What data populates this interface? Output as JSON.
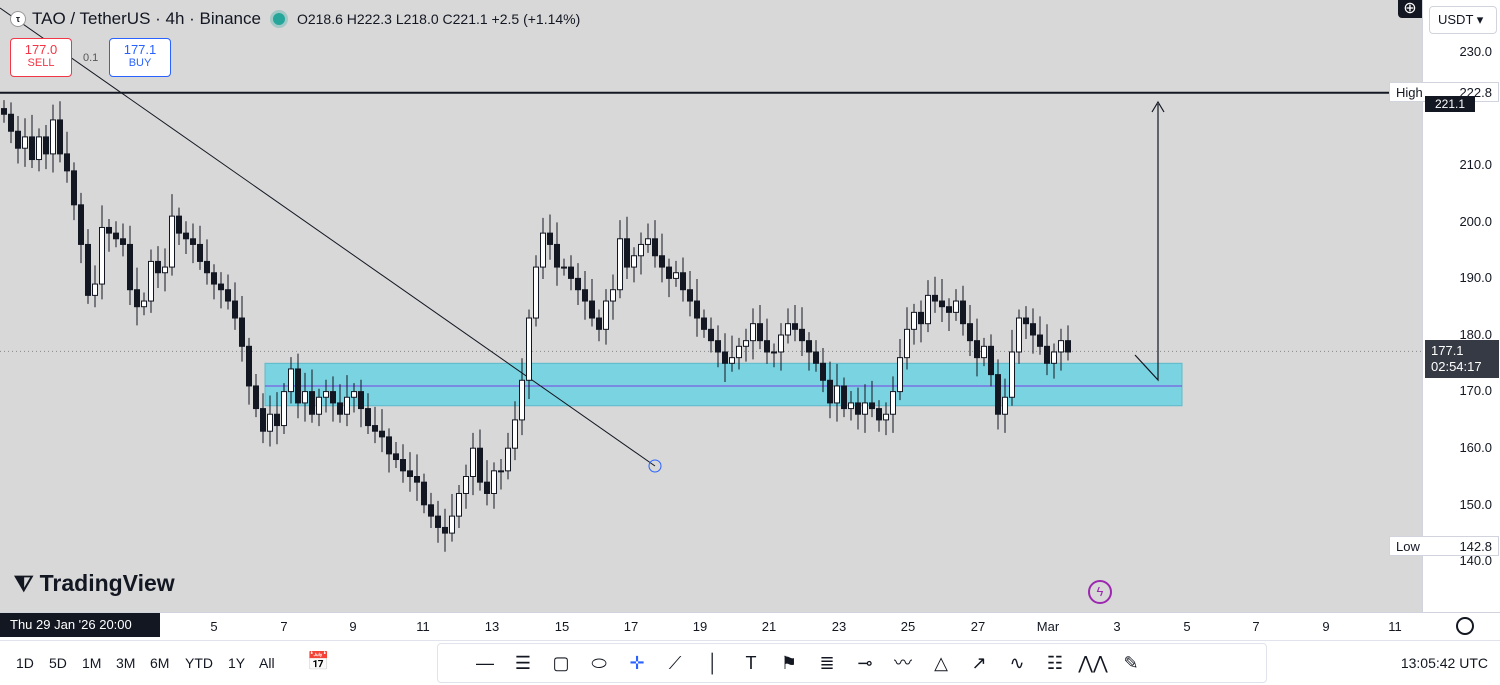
{
  "header": {
    "logo": "τ",
    "symbol": "TAO / TetherUS · 4h · Binance",
    "ohlc": "O218.6  H222.3  L218.0  C221.1  +2.5 (+1.14%)"
  },
  "trade": {
    "sell_price": "177.0",
    "sell_label": "SELL",
    "spread": "0.1",
    "buy_price": "177.1",
    "buy_label": "BUY"
  },
  "watermark": "TradingView",
  "price_axis": {
    "currency": "USDT",
    "ticks": [
      "230.0",
      "210.0",
      "200.0",
      "190.0",
      "180.0",
      "170.0",
      "160.0",
      "150.0",
      "140.0"
    ],
    "high_label": "High",
    "high_value": "222.8",
    "low_label": "Low",
    "low_value": "142.8",
    "line_tag": "221.1",
    "current_price": "177.1",
    "countdown": "02:54:17"
  },
  "time_axis": {
    "cursor_date": "Thu 29 Jan '26   20:00",
    "ticks": [
      "5",
      "7",
      "9",
      "11",
      "13",
      "15",
      "17",
      "19",
      "21",
      "23",
      "25",
      "27",
      "Mar",
      "3",
      "5",
      "7",
      "9",
      "11"
    ]
  },
  "ranges": [
    "1D",
    "5D",
    "1M",
    "3M",
    "6M",
    "YTD",
    "1Y",
    "All"
  ],
  "clock": "13:05:42 UTC",
  "colors": {
    "zone": "#7ad3e0",
    "up": "#ffffff",
    "down": "#131722",
    "mid_line": "#7b3fe4"
  },
  "chart_data": {
    "type": "candlestick",
    "symbol": "TAO / TetherUS",
    "interval": "4h",
    "y_range": [
      138,
      232
    ],
    "resistance": 222.8,
    "zone": {
      "low": 167.5,
      "high": 175,
      "mid": 171
    },
    "closes": [
      219,
      216,
      213,
      215,
      211,
      215,
      212,
      218,
      212,
      209,
      203,
      196,
      187,
      189,
      199,
      198,
      197,
      196,
      188,
      185,
      186,
      193,
      191,
      192,
      201,
      198,
      197,
      196,
      193,
      191,
      189,
      188,
      186,
      183,
      178,
      171,
      167,
      163,
      166,
      164,
      170,
      174,
      168,
      170,
      166,
      169,
      170,
      168,
      166,
      169,
      170,
      167,
      164,
      163,
      162,
      159,
      158,
      156,
      155,
      154,
      150,
      148,
      146,
      145,
      148,
      152,
      155,
      160,
      154,
      152,
      156,
      156,
      160,
      165,
      172,
      183,
      192,
      198,
      196,
      192,
      192,
      190,
      188,
      186,
      183,
      181,
      186,
      188,
      197,
      192,
      194,
      196,
      197,
      194,
      192,
      190,
      191,
      188,
      186,
      183,
      181,
      179,
      177,
      175,
      176,
      178,
      179,
      182,
      179,
      177,
      177,
      180,
      182,
      181,
      179,
      177,
      175,
      172,
      168,
      171,
      167,
      168,
      166,
      168,
      167,
      165,
      166,
      170,
      176,
      181,
      184,
      182,
      187,
      186,
      185,
      184,
      186,
      182,
      179,
      176,
      178,
      173,
      166,
      169,
      177,
      183,
      182,
      180,
      178,
      175,
      177,
      179,
      177
    ]
  }
}
